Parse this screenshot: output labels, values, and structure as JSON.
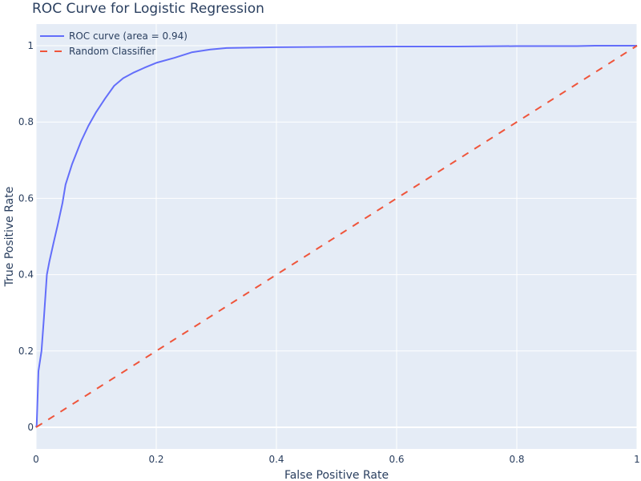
{
  "chart_data": {
    "type": "line",
    "title": "ROC Curve for Logistic Regression",
    "xlabel": "False Positive Rate",
    "ylabel": "True Positive Rate",
    "xlim": [
      0,
      1
    ],
    "ylim": [
      -0.05,
      1.06
    ],
    "xticks": [
      0,
      0.2,
      0.4,
      0.6,
      0.8,
      1
    ],
    "xtick_labels": [
      "0",
      "0.2",
      "0.4",
      "0.6",
      "0.8",
      "1"
    ],
    "yticks": [
      0,
      0.2,
      0.4,
      0.6,
      0.8,
      1
    ],
    "ytick_labels": [
      "0",
      "0.2",
      "0.4",
      "0.6",
      "0.8",
      "1"
    ],
    "grid": true,
    "legend_position": "top-left",
    "series": [
      {
        "name": "ROC curve (area = 0.94)",
        "color": "#636efa",
        "dash": "solid",
        "x": [
          0,
          0.001,
          0.004,
          0.009,
          0.013,
          0.018,
          0.022,
          0.029,
          0.036,
          0.044,
          0.049,
          0.06,
          0.075,
          0.087,
          0.1,
          0.115,
          0.13,
          0.145,
          0.163,
          0.18,
          0.2,
          0.23,
          0.26,
          0.29,
          0.317,
          0.4,
          0.5,
          0.6,
          0.7,
          0.8,
          0.9,
          0.93,
          1.0
        ],
        "y": [
          0,
          0.006,
          0.147,
          0.2,
          0.286,
          0.4,
          0.433,
          0.483,
          0.53,
          0.588,
          0.636,
          0.69,
          0.75,
          0.79,
          0.826,
          0.862,
          0.895,
          0.915,
          0.93,
          0.942,
          0.955,
          0.968,
          0.983,
          0.99,
          0.994,
          0.996,
          0.997,
          0.998,
          0.998,
          0.999,
          0.999,
          1.0,
          1.0
        ]
      },
      {
        "name": "Random Classifier",
        "color": "#ef553b",
        "dash": "dash",
        "x": [
          0,
          1
        ],
        "y": [
          0,
          1
        ]
      }
    ]
  },
  "colors": {
    "plot_bg": "#e5ecf6",
    "grid": "#ffffff",
    "text": "#2a3f5f"
  }
}
